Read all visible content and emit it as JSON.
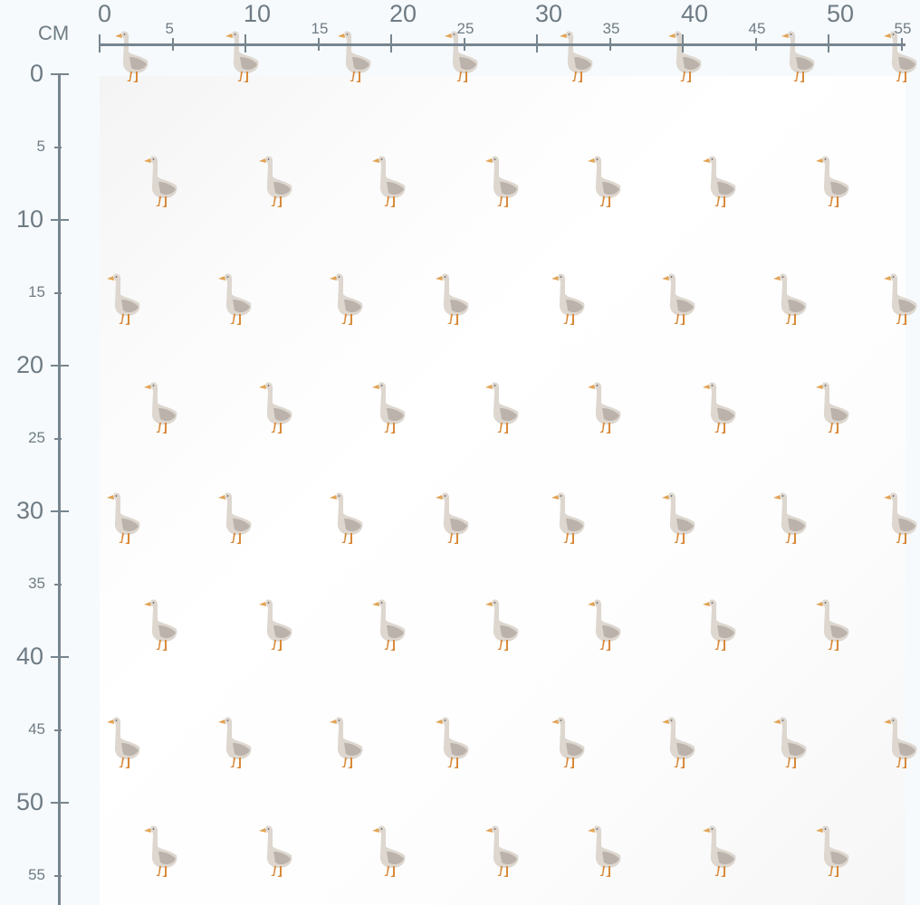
{
  "ruler": {
    "unit": "CM",
    "top_labels": [
      "0",
      "5",
      "10",
      "15",
      "20",
      "25",
      "30",
      "35",
      "40",
      "45",
      "50",
      "55"
    ],
    "left_labels": [
      "0",
      "5",
      "10",
      "15",
      "20",
      "25",
      "30",
      "35",
      "40",
      "45",
      "50",
      "55"
    ]
  },
  "fabric": {
    "motif": "goose",
    "colors": {
      "body": "#d8d2cb",
      "shadow": "#a89f96",
      "beak": "#e2a456",
      "legs": "#d98a3a",
      "background": "#ffffff"
    }
  }
}
